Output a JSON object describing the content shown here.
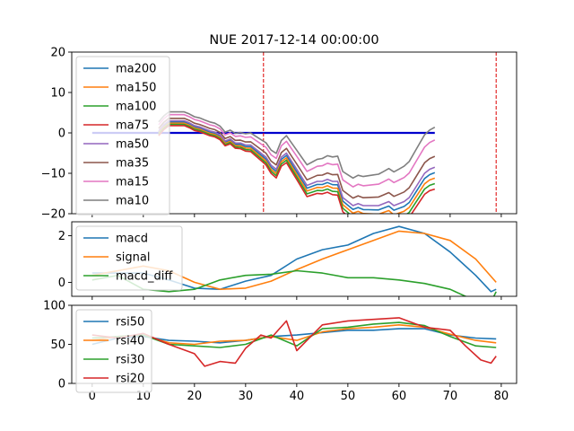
{
  "title": "NUE 2017-12-14 00:00:00",
  "colors": {
    "c0": "#1f77b4",
    "c1": "#ff7f0e",
    "c2": "#2ca02c",
    "c3": "#d62728",
    "c4": "#9467bd",
    "c5": "#8c564b",
    "c6": "#e377c2",
    "c7": "#7f7f7f",
    "zero_line": "#0000cc",
    "vline": "#dd0000"
  },
  "chart_data": [
    {
      "type": "line",
      "panel": "top",
      "title": "NUE 2017-12-14 00:00:00",
      "xlim": [
        -4,
        83
      ],
      "ylim": [
        -20,
        20
      ],
      "yticks": [
        -20,
        -10,
        0,
        10,
        20
      ],
      "xticks": [
        0,
        10,
        20,
        30,
        40,
        50,
        60,
        70,
        80
      ],
      "legend_position": "upper-left",
      "reference_hline": {
        "y": 0,
        "from_x": 0,
        "to_x": 67
      },
      "reference_vlines": [
        33.5,
        79
      ],
      "offsets": [
        -0.3,
        -0.6,
        -0.9,
        -1.2,
        0.0,
        0.6,
        1.5,
        2.2
      ],
      "series": [
        {
          "name": "ma200",
          "color_key": "c0",
          "x_start": 13,
          "values": [
            0.5,
            2,
            3,
            3,
            3,
            3,
            2.5,
            1.8,
            1.5,
            1,
            0.5,
            0.2,
            -0.5,
            -2,
            -1.5,
            -2.5,
            -2.5,
            -3,
            -3,
            -4,
            -5,
            -6,
            -8,
            -9,
            -6,
            -5,
            -7,
            -9,
            -11,
            -13,
            -12.5,
            -12,
            -12,
            -11.5,
            -12,
            -12,
            -16,
            -17,
            -18,
            -17.5,
            -18,
            -18,
            -18,
            -18,
            -17.5,
            -17,
            -18,
            -17.5,
            -17,
            -16,
            -14,
            -12,
            -10,
            -9,
            -8.5
          ]
        },
        {
          "name": "ma150",
          "x_start": 13,
          "color_key": "c1",
          "values": [
            0.5,
            2,
            3,
            3,
            3,
            3,
            2.5,
            1.8,
            1.5,
            1,
            0.5,
            0.2,
            -0.5,
            -2,
            -1.5,
            -2.5,
            -2.5,
            -3,
            -3,
            -4,
            -5,
            -6,
            -8,
            -9,
            -6,
            -5,
            -7,
            -9,
            -11,
            -13,
            -12.5,
            -12,
            -12,
            -11.5,
            -12,
            -12,
            -16,
            -17,
            -18,
            -17.5,
            -18,
            -18,
            -18,
            -18,
            -17.5,
            -17,
            -18,
            -17.5,
            -17,
            -16,
            -14,
            -12,
            -10,
            -9,
            -8.5
          ]
        },
        {
          "name": "ma100",
          "x_start": 13,
          "color_key": "c2",
          "values": [
            0.5,
            2,
            3,
            3,
            3,
            3,
            2.5,
            1.8,
            1.5,
            1,
            0.5,
            0.2,
            -0.5,
            -2,
            -1.5,
            -2.5,
            -2.5,
            -3,
            -3,
            -4,
            -5,
            -6,
            -8,
            -9,
            -6,
            -5,
            -7,
            -9,
            -11,
            -13,
            -12.5,
            -12,
            -12,
            -11.5,
            -12,
            -12,
            -16,
            -17,
            -18,
            -17.5,
            -18,
            -18,
            -18,
            -18,
            -17.5,
            -17,
            -18,
            -17.5,
            -17,
            -16,
            -14,
            -12,
            -10,
            -9,
            -8.5
          ]
        },
        {
          "name": "ma75",
          "x_start": 13,
          "color_key": "c3",
          "values": [
            0.5,
            2,
            3,
            3,
            3,
            3,
            2.5,
            1.8,
            1.5,
            1,
            0.5,
            0.2,
            -0.5,
            -2,
            -1.5,
            -2.5,
            -2.5,
            -3,
            -3,
            -4,
            -5,
            -6,
            -8,
            -9,
            -6,
            -5,
            -7,
            -9,
            -11,
            -13,
            -12.5,
            -12,
            -12,
            -11.5,
            -12,
            -12,
            -16,
            -17,
            -18,
            -17.5,
            -18,
            -18,
            -18,
            -18,
            -17.5,
            -17,
            -18,
            -17.5,
            -17,
            -16,
            -14,
            -12,
            -10,
            -9,
            -8.5
          ]
        },
        {
          "name": "ma50",
          "x_start": 13,
          "color_key": "c4",
          "values": [
            0.5,
            2,
            3,
            3,
            3,
            3,
            2.5,
            1.8,
            1.5,
            1,
            0.5,
            0.2,
            -0.5,
            -2,
            -1.5,
            -2.5,
            -2.5,
            -3,
            -3,
            -4,
            -5,
            -6,
            -8,
            -9,
            -6,
            -5,
            -7,
            -9,
            -11,
            -13,
            -12.5,
            -12,
            -12,
            -11.5,
            -12,
            -12,
            -16,
            -17,
            -18,
            -17.5,
            -18,
            -18,
            -18,
            -18,
            -17.5,
            -17,
            -18,
            -17.5,
            -17,
            -16,
            -14,
            -12,
            -10,
            -9,
            -8.5
          ]
        },
        {
          "name": "ma35",
          "x_start": 13,
          "color_key": "c5",
          "values": [
            0.5,
            2,
            3,
            3,
            3,
            3,
            2.5,
            1.8,
            1.5,
            1,
            0.5,
            0.2,
            -0.5,
            -2,
            -1.5,
            -2.5,
            -2.5,
            -3,
            -3,
            -4,
            -5,
            -6,
            -8,
            -9,
            -6,
            -5,
            -7,
            -9,
            -11,
            -13,
            -12.5,
            -12,
            -12,
            -11.5,
            -12,
            -12,
            -16,
            -17,
            -18,
            -17.5,
            -18,
            -18,
            -18,
            -18,
            -17.5,
            -17,
            -18,
            -17.5,
            -17,
            -16,
            -14,
            -12,
            -10,
            -9,
            -8.5
          ]
        },
        {
          "name": "ma15",
          "x_start": 13,
          "color_key": "c6",
          "values": [
            0.5,
            2,
            3,
            3,
            3,
            3,
            2.5,
            1.8,
            1.5,
            1,
            0.5,
            0.2,
            -0.5,
            -2,
            -1.5,
            -2.5,
            -2.5,
            -3,
            -3,
            -4,
            -5,
            -6,
            -8,
            -9,
            -6,
            -5,
            -7,
            -9,
            -11,
            -13,
            -12.5,
            -12,
            -12,
            -11.5,
            -12,
            -12,
            -16,
            -17,
            -18,
            -17.5,
            -18,
            -18,
            -18,
            -18,
            -17.5,
            -17,
            -18,
            -17.5,
            -17,
            -16,
            -14,
            -12,
            -10,
            -9,
            -8.5
          ]
        },
        {
          "name": "ma10",
          "x_start": 13,
          "color_key": "c7",
          "values": [
            0.5,
            2,
            3,
            3,
            3,
            3,
            2.5,
            1.8,
            1.5,
            1,
            0.5,
            0.2,
            -0.5,
            -2,
            -1.5,
            -2.5,
            -2.5,
            -3,
            -3,
            -4,
            -5,
            -6,
            -8,
            -9,
            -6,
            -5,
            -7,
            -9,
            -11,
            -13,
            -12.5,
            -12,
            -12,
            -11.5,
            -12,
            -12,
            -16,
            -17,
            -18,
            -17.5,
            -18,
            -18,
            -18,
            -18,
            -17.5,
            -17,
            -18,
            -17.5,
            -17,
            -16,
            -14,
            -12,
            -10,
            -9,
            -8.5
          ]
        }
      ]
    },
    {
      "type": "line",
      "panel": "middle",
      "xlim": [
        -4,
        83
      ],
      "ylim": [
        -0.6,
        2.6
      ],
      "yticks": [
        0,
        2
      ],
      "xticks": [
        0,
        10,
        20,
        30,
        40,
        50,
        60,
        70,
        80
      ],
      "legend_position": "upper-left",
      "series": [
        {
          "name": "macd",
          "color_key": "c0",
          "x": [
            0,
            10,
            15,
            20,
            25,
            30,
            35,
            40,
            45,
            50,
            55,
            60,
            65,
            70,
            75,
            78,
            79
          ],
          "values": [
            0.4,
            0.4,
            0.1,
            -0.25,
            -0.3,
            0.05,
            0.3,
            1.0,
            1.4,
            1.6,
            2.1,
            2.4,
            2.1,
            1.3,
            0.3,
            -0.4,
            -0.3
          ]
        },
        {
          "name": "signal",
          "color_key": "c1",
          "x": [
            0,
            10,
            15,
            20,
            25,
            30,
            35,
            40,
            45,
            50,
            55,
            60,
            65,
            70,
            75,
            79
          ],
          "values": [
            0.3,
            0.7,
            0.5,
            0.0,
            -0.3,
            -0.25,
            0.05,
            0.55,
            1.0,
            1.4,
            1.8,
            2.2,
            2.1,
            1.8,
            1.0,
            0.0
          ]
        },
        {
          "name": "macd_diff",
          "color_key": "c2",
          "x": [
            0,
            5,
            10,
            15,
            20,
            25,
            30,
            35,
            40,
            45,
            50,
            55,
            60,
            65,
            70,
            75,
            78,
            79
          ],
          "values": [
            0.1,
            0.3,
            -0.3,
            -0.4,
            -0.3,
            0.1,
            0.3,
            0.35,
            0.5,
            0.4,
            0.2,
            0.2,
            0.1,
            -0.05,
            -0.3,
            -0.8,
            -0.85,
            -0.4
          ]
        }
      ]
    },
    {
      "type": "line",
      "panel": "bottom",
      "xlim": [
        -4,
        83
      ],
      "ylim": [
        0,
        100
      ],
      "yticks": [
        0,
        50,
        100
      ],
      "xticks": [
        0,
        10,
        20,
        30,
        40,
        50,
        60,
        70,
        80
      ],
      "xticklabels": [
        "0",
        "10",
        "20",
        "30",
        "40",
        "50",
        "60",
        "70",
        "80"
      ],
      "legend_position": "upper-left",
      "series": [
        {
          "name": "rsi50",
          "color_key": "c0",
          "x": [
            0,
            5,
            10,
            15,
            20,
            25,
            30,
            35,
            40,
            45,
            50,
            55,
            60,
            65,
            70,
            75,
            79
          ],
          "values": [
            50,
            58,
            60,
            55,
            54,
            52,
            55,
            60,
            62,
            65,
            68,
            68,
            70,
            70,
            62,
            58,
            57
          ]
        },
        {
          "name": "rsi40",
          "color_key": "c1",
          "x": [
            0,
            5,
            10,
            15,
            20,
            25,
            30,
            35,
            40,
            45,
            50,
            55,
            60,
            65,
            70,
            75,
            79
          ],
          "values": [
            55,
            60,
            62,
            52,
            50,
            54,
            55,
            60,
            55,
            66,
            70,
            72,
            75,
            72,
            63,
            55,
            52
          ]
        },
        {
          "name": "rsi30",
          "color_key": "c2",
          "x": [
            0,
            5,
            10,
            15,
            20,
            25,
            30,
            35,
            40,
            45,
            50,
            55,
            60,
            65,
            70,
            75,
            79
          ],
          "values": [
            58,
            60,
            62,
            50,
            48,
            46,
            50,
            62,
            48,
            70,
            72,
            76,
            78,
            74,
            60,
            48,
            46
          ]
        },
        {
          "name": "rsi20",
          "color_key": "c3",
          "x": [
            0,
            5,
            10,
            15,
            20,
            22,
            25,
            28,
            30,
            33,
            35,
            38,
            40,
            45,
            50,
            55,
            60,
            65,
            70,
            73,
            76,
            78,
            79
          ],
          "values": [
            62,
            58,
            64,
            50,
            38,
            22,
            28,
            26,
            45,
            62,
            58,
            80,
            42,
            75,
            80,
            82,
            84,
            72,
            68,
            48,
            30,
            26,
            35
          ]
        }
      ]
    }
  ]
}
